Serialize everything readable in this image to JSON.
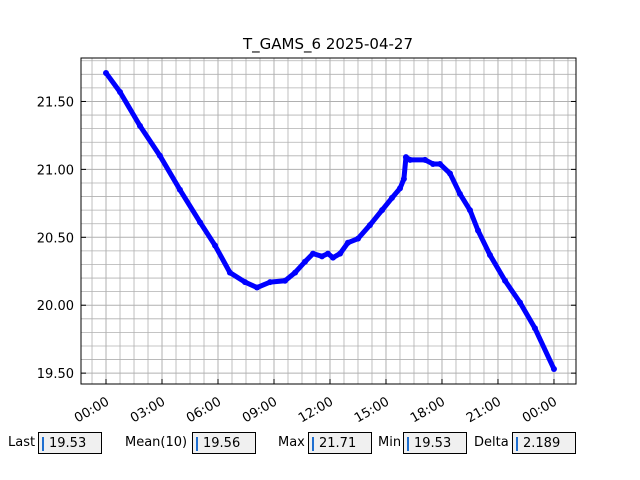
{
  "chart_data": {
    "type": "line",
    "title": "T_GAMS_6 2025-04-27",
    "color": "#0000ff",
    "grid": true,
    "x": [
      0,
      0.75,
      1.82,
      2.89,
      3.96,
      5.04,
      5.84,
      6.64,
      7.45,
      8.09,
      8.79,
      9.59,
      10.13,
      10.66,
      11.09,
      11.57,
      11.89,
      12.16,
      12.54,
      12.96,
      13.5,
      14.14,
      14.79,
      15.32,
      15.75,
      15.96,
      16.07,
      16.29,
      17.09,
      17.52,
      17.89,
      18.43,
      18.96,
      19.5,
      19.93,
      20.57,
      21.38,
      22.18,
      22.98,
      24.0
    ],
    "values": [
      21.71,
      21.57,
      21.32,
      21.1,
      20.85,
      20.61,
      20.44,
      20.24,
      20.17,
      20.13,
      20.17,
      20.18,
      20.24,
      20.32,
      20.38,
      20.36,
      20.38,
      20.35,
      20.38,
      20.46,
      20.49,
      20.59,
      20.7,
      20.79,
      20.86,
      20.93,
      21.09,
      21.07,
      21.07,
      21.04,
      21.04,
      20.97,
      20.82,
      20.7,
      20.55,
      20.37,
      20.18,
      20.02,
      19.83,
      19.53
    ],
    "xlim": [
      -1.34,
      25.18
    ],
    "ylim": [
      19.42,
      21.82
    ],
    "xticks": [
      {
        "value": 0,
        "label": "00:00"
      },
      {
        "value": 3,
        "label": "03:00"
      },
      {
        "value": 6,
        "label": "06:00"
      },
      {
        "value": 9,
        "label": "09:00"
      },
      {
        "value": 12,
        "label": "12:00"
      },
      {
        "value": 15,
        "label": "15:00"
      },
      {
        "value": 18,
        "label": "18:00"
      },
      {
        "value": 21,
        "label": "21:00"
      },
      {
        "value": 24,
        "label": "00:00"
      }
    ],
    "yticks": [
      {
        "value": 19.5,
        "label": "19.50"
      },
      {
        "value": 20,
        "label": "20.00"
      },
      {
        "value": 20.5,
        "label": "20.50"
      },
      {
        "value": 21,
        "label": "21.00"
      },
      {
        "value": 21.5,
        "label": "21.50"
      }
    ],
    "x_minor_ticks": [
      -0.75,
      0.75,
      1.5,
      2.25,
      3.75,
      4.5,
      5.25,
      6.75,
      7.5,
      8.25,
      9.75,
      10.5,
      11.25,
      12.75,
      13.5,
      14.25,
      15.75,
      16.5,
      17.25,
      18.75,
      19.5,
      20.25,
      21.75,
      22.5,
      23.25,
      24.75
    ],
    "y_minor_ticks": [
      19.6,
      19.7,
      19.8,
      19.9,
      20.1,
      20.2,
      20.3,
      20.4,
      20.6,
      20.7,
      20.8,
      20.9,
      21.1,
      21.2,
      21.3,
      21.4,
      21.6,
      21.7,
      21.8
    ]
  },
  "stats": [
    {
      "label": "Last",
      "value": "19.53"
    },
    {
      "label": "Mean(10)",
      "value": "19.56"
    },
    {
      "label": "Max",
      "value": "21.71"
    },
    {
      "label": "Min",
      "value": "19.53"
    },
    {
      "label": "Delta",
      "value": "2.189"
    }
  ]
}
